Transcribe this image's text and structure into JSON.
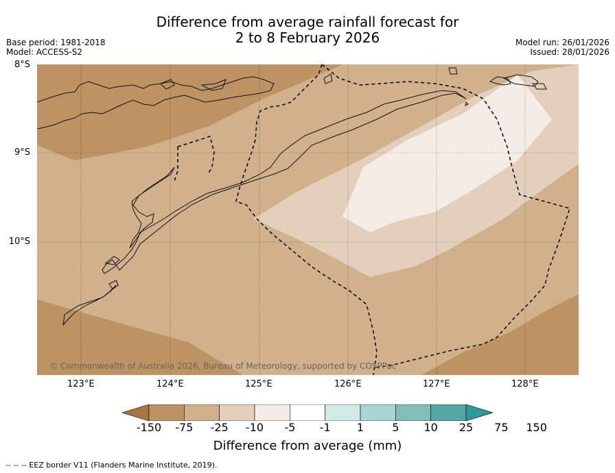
{
  "header": {
    "title_line1": "Difference from average rainfall forecast for",
    "title_line2": "2 to 8 February 2026",
    "base_period": "Base period: 1981-2018",
    "model": "Model: ACCESS-S2",
    "model_run": "Model run: 26/01/2026",
    "issued": "Issued: 28/01/2026"
  },
  "map": {
    "lat_labels": [
      "8°S",
      "9°S",
      "10°S"
    ],
    "lon_labels": [
      "123°E",
      "124°E",
      "125°E",
      "126°E",
      "127°E",
      "128°E"
    ],
    "copyright": "© Commonwealth of Australia 2026, Bureau of Meteorology, supported by COSPPac"
  },
  "colorbar": {
    "ticks": [
      "-150",
      "-75",
      "-25",
      "-10",
      "-5",
      "-1",
      "1",
      "5",
      "10",
      "25",
      "75",
      "150"
    ],
    "colors": [
      "#a87641",
      "#bd9364",
      "#d1b08c",
      "#e3cfbc",
      "#f4ece6",
      "#ffffff",
      "#d2ebe7",
      "#a8d6d2",
      "#7ebfba",
      "#57a8a4",
      "#2f9896"
    ],
    "title": "Difference from average (mm)"
  },
  "legend": {
    "eez_note": "--  --  -- EEZ border V11 (Flanders Marine Institute, 2019)."
  }
}
